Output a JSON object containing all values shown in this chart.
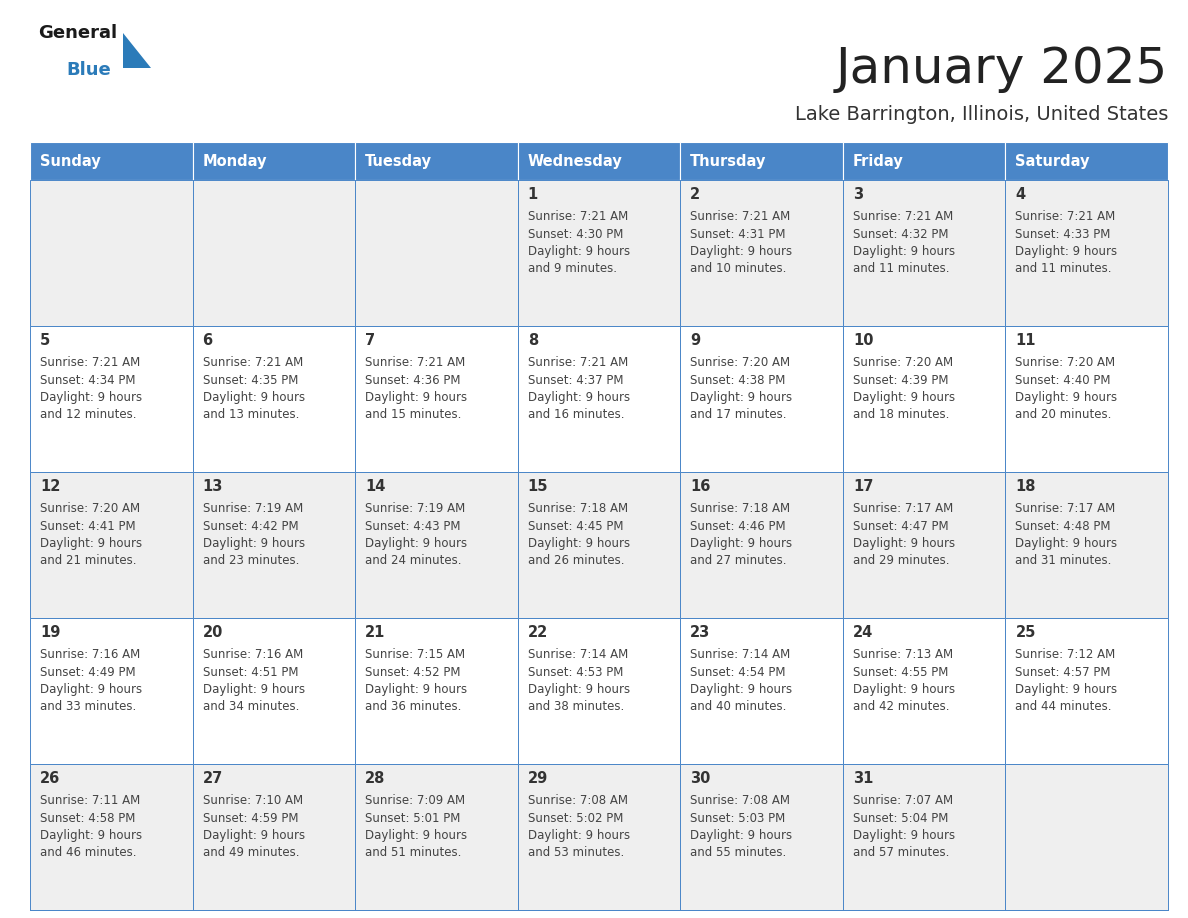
{
  "title": "January 2025",
  "subtitle": "Lake Barrington, Illinois, United States",
  "header_bg_color": "#4A86C8",
  "header_text_color": "#FFFFFF",
  "cell_bg_color_light": "#EFEFEF",
  "cell_bg_color_white": "#FFFFFF",
  "grid_line_color": "#4A86C8",
  "day_names": [
    "Sunday",
    "Monday",
    "Tuesday",
    "Wednesday",
    "Thursday",
    "Friday",
    "Saturday"
  ],
  "title_color": "#222222",
  "subtitle_color": "#333333",
  "day_number_color": "#333333",
  "cell_text_color": "#444444",
  "logo_general_color": "#1a1a1a",
  "logo_blue_color": "#2B7BB9",
  "weeks": [
    [
      {
        "day": "",
        "sunrise": "",
        "sunset": "",
        "daylight": ""
      },
      {
        "day": "",
        "sunrise": "",
        "sunset": "",
        "daylight": ""
      },
      {
        "day": "",
        "sunrise": "",
        "sunset": "",
        "daylight": ""
      },
      {
        "day": "1",
        "sunrise": "7:21 AM",
        "sunset": "4:30 PM",
        "daylight": "9 hours and 9 minutes."
      },
      {
        "day": "2",
        "sunrise": "7:21 AM",
        "sunset": "4:31 PM",
        "daylight": "9 hours and 10 minutes."
      },
      {
        "day": "3",
        "sunrise": "7:21 AM",
        "sunset": "4:32 PM",
        "daylight": "9 hours and 11 minutes."
      },
      {
        "day": "4",
        "sunrise": "7:21 AM",
        "sunset": "4:33 PM",
        "daylight": "9 hours and 11 minutes."
      }
    ],
    [
      {
        "day": "5",
        "sunrise": "7:21 AM",
        "sunset": "4:34 PM",
        "daylight": "9 hours and 12 minutes."
      },
      {
        "day": "6",
        "sunrise": "7:21 AM",
        "sunset": "4:35 PM",
        "daylight": "9 hours and 13 minutes."
      },
      {
        "day": "7",
        "sunrise": "7:21 AM",
        "sunset": "4:36 PM",
        "daylight": "9 hours and 15 minutes."
      },
      {
        "day": "8",
        "sunrise": "7:21 AM",
        "sunset": "4:37 PM",
        "daylight": "9 hours and 16 minutes."
      },
      {
        "day": "9",
        "sunrise": "7:20 AM",
        "sunset": "4:38 PM",
        "daylight": "9 hours and 17 minutes."
      },
      {
        "day": "10",
        "sunrise": "7:20 AM",
        "sunset": "4:39 PM",
        "daylight": "9 hours and 18 minutes."
      },
      {
        "day": "11",
        "sunrise": "7:20 AM",
        "sunset": "4:40 PM",
        "daylight": "9 hours and 20 minutes."
      }
    ],
    [
      {
        "day": "12",
        "sunrise": "7:20 AM",
        "sunset": "4:41 PM",
        "daylight": "9 hours and 21 minutes."
      },
      {
        "day": "13",
        "sunrise": "7:19 AM",
        "sunset": "4:42 PM",
        "daylight": "9 hours and 23 minutes."
      },
      {
        "day": "14",
        "sunrise": "7:19 AM",
        "sunset": "4:43 PM",
        "daylight": "9 hours and 24 minutes."
      },
      {
        "day": "15",
        "sunrise": "7:18 AM",
        "sunset": "4:45 PM",
        "daylight": "9 hours and 26 minutes."
      },
      {
        "day": "16",
        "sunrise": "7:18 AM",
        "sunset": "4:46 PM",
        "daylight": "9 hours and 27 minutes."
      },
      {
        "day": "17",
        "sunrise": "7:17 AM",
        "sunset": "4:47 PM",
        "daylight": "9 hours and 29 minutes."
      },
      {
        "day": "18",
        "sunrise": "7:17 AM",
        "sunset": "4:48 PM",
        "daylight": "9 hours and 31 minutes."
      }
    ],
    [
      {
        "day": "19",
        "sunrise": "7:16 AM",
        "sunset": "4:49 PM",
        "daylight": "9 hours and 33 minutes."
      },
      {
        "day": "20",
        "sunrise": "7:16 AM",
        "sunset": "4:51 PM",
        "daylight": "9 hours and 34 minutes."
      },
      {
        "day": "21",
        "sunrise": "7:15 AM",
        "sunset": "4:52 PM",
        "daylight": "9 hours and 36 minutes."
      },
      {
        "day": "22",
        "sunrise": "7:14 AM",
        "sunset": "4:53 PM",
        "daylight": "9 hours and 38 minutes."
      },
      {
        "day": "23",
        "sunrise": "7:14 AM",
        "sunset": "4:54 PM",
        "daylight": "9 hours and 40 minutes."
      },
      {
        "day": "24",
        "sunrise": "7:13 AM",
        "sunset": "4:55 PM",
        "daylight": "9 hours and 42 minutes."
      },
      {
        "day": "25",
        "sunrise": "7:12 AM",
        "sunset": "4:57 PM",
        "daylight": "9 hours and 44 minutes."
      }
    ],
    [
      {
        "day": "26",
        "sunrise": "7:11 AM",
        "sunset": "4:58 PM",
        "daylight": "9 hours and 46 minutes."
      },
      {
        "day": "27",
        "sunrise": "7:10 AM",
        "sunset": "4:59 PM",
        "daylight": "9 hours and 49 minutes."
      },
      {
        "day": "28",
        "sunrise": "7:09 AM",
        "sunset": "5:01 PM",
        "daylight": "9 hours and 51 minutes."
      },
      {
        "day": "29",
        "sunrise": "7:08 AM",
        "sunset": "5:02 PM",
        "daylight": "9 hours and 53 minutes."
      },
      {
        "day": "30",
        "sunrise": "7:08 AM",
        "sunset": "5:03 PM",
        "daylight": "9 hours and 55 minutes."
      },
      {
        "day": "31",
        "sunrise": "7:07 AM",
        "sunset": "5:04 PM",
        "daylight": "9 hours and 57 minutes."
      },
      {
        "day": "",
        "sunrise": "",
        "sunset": "",
        "daylight": ""
      }
    ]
  ]
}
